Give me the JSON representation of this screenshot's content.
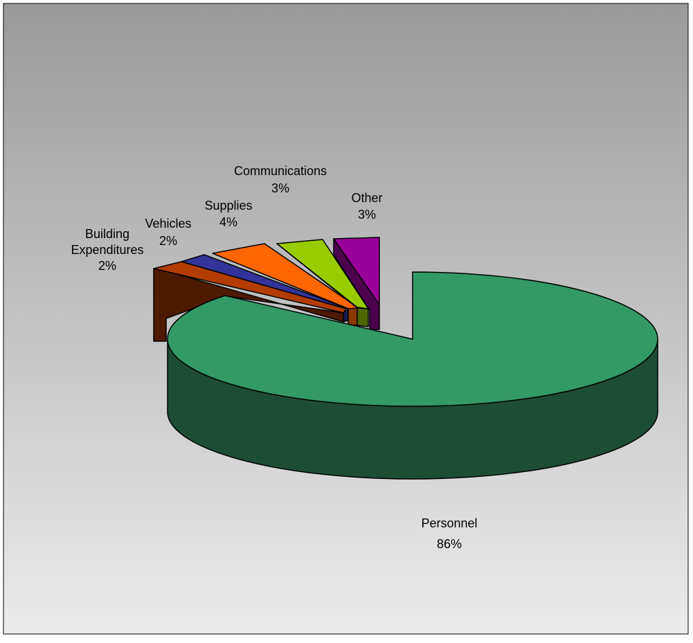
{
  "chart_data": {
    "type": "pie",
    "style": "3d-exploded",
    "title": "",
    "legend": "none",
    "slices": [
      {
        "key": "personnel",
        "label": "Personnel",
        "pct_label": "86%",
        "value": 86,
        "color": "#339966",
        "side_color": "#1d4d35"
      },
      {
        "key": "building",
        "label": "Building Expenditures",
        "label_lines": [
          "Building",
          "Expenditures"
        ],
        "pct_label": "2%",
        "value": 2,
        "color": "#b33c00",
        "side_color": "#4d1a00"
      },
      {
        "key": "vehicles",
        "label": "Vehicles",
        "pct_label": "2%",
        "value": 2,
        "color": "#333399",
        "side_color": "#1a1a55"
      },
      {
        "key": "supplies",
        "label": "Supplies",
        "pct_label": "4%",
        "value": 4,
        "color": "#ff6600",
        "side_color": "#8a3a00"
      },
      {
        "key": "communications",
        "label": "Communications",
        "pct_label": "3%",
        "value": 3,
        "color": "#99cc00",
        "side_color": "#4d6600"
      },
      {
        "key": "other",
        "label": "Other",
        "pct_label": "3%",
        "value": 3,
        "color": "#990099",
        "side_color": "#4d004d"
      }
    ],
    "background": {
      "gradient_top": "#9a9a9a",
      "gradient_bottom": "#ececec"
    }
  }
}
